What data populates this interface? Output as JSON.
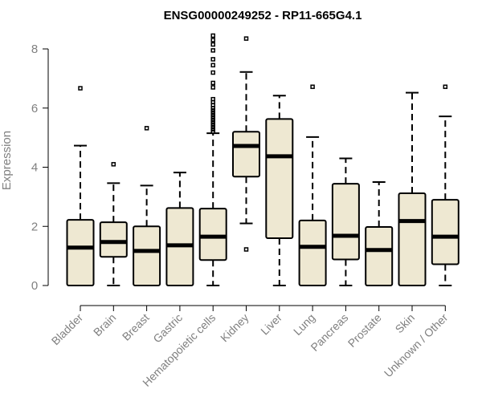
{
  "chart_data": {
    "type": "boxplot",
    "title": "ENSG00000249252 - RP11-665G4.1",
    "xlabel": "",
    "ylabel": "Expression",
    "ylim": [
      0,
      8.5
    ],
    "yticks": [
      0,
      2,
      4,
      6,
      8
    ],
    "box_fill": "#EEE8D2",
    "grid": false,
    "categories": [
      "Bladder",
      "Brain",
      "Breast",
      "Gastric",
      "Hematopoietic cells",
      "Kidney",
      "Liver",
      "Lung",
      "Pancreas",
      "Prostate",
      "Skin",
      "Unknown / Other"
    ],
    "boxes": [
      {
        "min": 0,
        "q1": 0,
        "median": 1.28,
        "q3": 2.22,
        "max": 4.73,
        "outliers": [
          6.67
        ]
      },
      {
        "min": 0,
        "q1": 0.97,
        "median": 1.47,
        "q3": 2.14,
        "max": 3.46,
        "outliers": [
          4.1
        ]
      },
      {
        "min": 0,
        "q1": 0,
        "median": 1.17,
        "q3": 2.0,
        "max": 3.38,
        "outliers": [
          5.32
        ]
      },
      {
        "min": 0,
        "q1": 0,
        "median": 1.36,
        "q3": 2.62,
        "max": 3.82,
        "outliers": []
      },
      {
        "min": 0,
        "q1": 0.86,
        "median": 1.65,
        "q3": 2.6,
        "max": 5.15,
        "outliers": [
          5.2,
          5.28,
          5.36,
          5.44,
          5.52,
          5.6,
          5.68,
          5.76,
          5.84,
          5.92,
          6.0,
          6.1,
          6.2,
          6.3,
          6.7,
          6.85,
          7.2,
          7.45,
          7.65,
          7.95,
          8.15,
          8.3,
          8.45
        ]
      },
      {
        "min": 2.1,
        "q1": 3.68,
        "median": 4.72,
        "q3": 5.2,
        "max": 7.22,
        "outliers": [
          8.35,
          1.22
        ]
      },
      {
        "min": 0,
        "q1": 1.6,
        "median": 4.37,
        "q3": 5.63,
        "max": 6.42,
        "outliers": []
      },
      {
        "min": 0,
        "q1": 0,
        "median": 1.31,
        "q3": 2.2,
        "max": 5.02,
        "outliers": [
          6.72
        ]
      },
      {
        "min": 0,
        "q1": 0.88,
        "median": 1.68,
        "q3": 3.44,
        "max": 4.3,
        "outliers": []
      },
      {
        "min": 0,
        "q1": 0,
        "median": 1.2,
        "q3": 1.98,
        "max": 3.5,
        "outliers": []
      },
      {
        "min": 0,
        "q1": 0,
        "median": 2.18,
        "q3": 3.12,
        "max": 6.52,
        "outliers": []
      },
      {
        "min": 0,
        "q1": 0.72,
        "median": 1.65,
        "q3": 2.9,
        "max": 5.72,
        "outliers": [
          6.72
        ]
      }
    ]
  }
}
